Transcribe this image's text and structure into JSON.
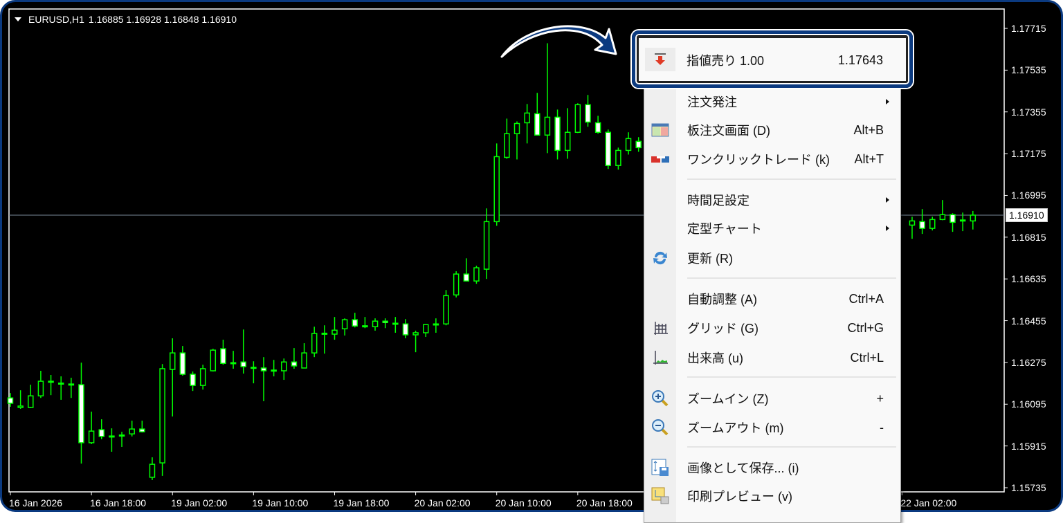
{
  "chart_header": {
    "symbol_tf": "EURUSD,H1",
    "ohlc": "1.16885 1.16928 1.16848 1.16910"
  },
  "colors": {
    "background": "#000000",
    "candle": "#00ff00",
    "bear_fill": "#ffffff",
    "bull_fill": "#000000",
    "bid_line": "#778899",
    "highlight_border": "#0b3a80"
  },
  "chart_data": {
    "type": "candlestick",
    "symbol": "EURUSD",
    "timeframe": "H1",
    "ylim": [
      1.15735,
      1.17715
    ],
    "grid": false,
    "y_ticks": [
      "1.17715",
      "1.17535",
      "1.17355",
      "1.17175",
      "1.16995",
      "1.16815",
      "1.16635",
      "1.16455",
      "1.16275",
      "1.16095",
      "1.15915",
      "1.15735"
    ],
    "current_price": "1.16910",
    "x_ticks": [
      {
        "bar": 0,
        "label": "16 Jan 2026"
      },
      {
        "bar": 8,
        "label": "16 Jan 18:00"
      },
      {
        "bar": 16,
        "label": "19 Jan 02:00"
      },
      {
        "bar": 24,
        "label": "19 Jan 10:00"
      },
      {
        "bar": 32,
        "label": "19 Jan 18:00"
      },
      {
        "bar": 40,
        "label": "20 Jan 02:00"
      },
      {
        "bar": 48,
        "label": "20 Jan 10:00"
      },
      {
        "bar": 56,
        "label": "20 Jan 18:00"
      },
      {
        "bar": 88,
        "label": "22 Jan 02:00"
      }
    ],
    "candles_ohlc": [
      [
        1.16122,
        1.16143,
        1.16084,
        1.16099
      ],
      [
        1.16081,
        1.16155,
        1.16075,
        1.16087
      ],
      [
        1.16081,
        1.16179,
        1.16078,
        1.16131
      ],
      [
        1.16131,
        1.16239,
        1.16122,
        1.16194
      ],
      [
        1.16194,
        1.16221,
        1.16134,
        1.16191
      ],
      [
        1.16185,
        1.16215,
        1.16114,
        1.16186
      ],
      [
        1.16182,
        1.16209,
        1.16122,
        1.16179
      ],
      [
        1.16179,
        1.16274,
        1.15839,
        1.15929
      ],
      [
        1.15929,
        1.16063,
        1.15923,
        1.15979
      ],
      [
        1.15985,
        1.1603,
        1.15944,
        1.15956
      ],
      [
        1.15956,
        1.15991,
        1.1589,
        1.15958
      ],
      [
        1.15961,
        1.15976,
        1.15911,
        1.15962
      ],
      [
        1.15967,
        1.16024,
        1.15956,
        1.15988
      ],
      [
        1.15988,
        1.16024,
        1.15973,
        1.15976
      ],
      [
        1.1578,
        1.15866,
        1.15768,
        1.15836
      ],
      [
        1.15842,
        1.16268,
        1.15786,
        1.16248
      ],
      [
        1.16245,
        1.16379,
        1.16042,
        1.16316
      ],
      [
        1.16316,
        1.16346,
        1.16218,
        1.16224
      ],
      [
        1.16224,
        1.16236,
        1.16152,
        1.16176
      ],
      [
        1.16176,
        1.16265,
        1.16158,
        1.16248
      ],
      [
        1.16239,
        1.16334,
        1.16236,
        1.16328
      ],
      [
        1.16334,
        1.16373,
        1.16265,
        1.16271
      ],
      [
        1.16274,
        1.16325,
        1.16248,
        1.16273
      ],
      [
        1.16277,
        1.16417,
        1.16227,
        1.16257
      ],
      [
        1.16254,
        1.1628,
        1.16185,
        1.16254
      ],
      [
        1.16251,
        1.16298,
        1.16108,
        1.16239
      ],
      [
        1.16242,
        1.16286,
        1.16215,
        1.16242
      ],
      [
        1.16239,
        1.16292,
        1.162,
        1.16277
      ],
      [
        1.16277,
        1.16337,
        1.16248,
        1.1626
      ],
      [
        1.16251,
        1.16358,
        1.16251,
        1.16316
      ],
      [
        1.16316,
        1.16429,
        1.16298,
        1.164
      ],
      [
        1.164,
        1.16435,
        1.16313,
        1.16401
      ],
      [
        1.16397,
        1.16471,
        1.16373,
        1.16414
      ],
      [
        1.1642,
        1.16465,
        1.16391,
        1.16459
      ],
      [
        1.16459,
        1.16489,
        1.16426,
        1.16432
      ],
      [
        1.16432,
        1.16471,
        1.16423,
        1.16433
      ],
      [
        1.16429,
        1.16465,
        1.16412,
        1.16453
      ],
      [
        1.16453,
        1.16465,
        1.16423,
        1.16447
      ],
      [
        1.16444,
        1.16471,
        1.16403,
        1.16444
      ],
      [
        1.16441,
        1.16462,
        1.16379,
        1.16394
      ],
      [
        1.16394,
        1.16412,
        1.16319,
        1.16403
      ],
      [
        1.16403,
        1.1644,
        1.16385,
        1.16438
      ],
      [
        1.1644,
        1.16465,
        1.16403,
        1.16441
      ],
      [
        1.16441,
        1.16587,
        1.16435,
        1.16563
      ],
      [
        1.16566,
        1.16668,
        1.16555,
        1.16656
      ],
      [
        1.16656,
        1.16724,
        1.16624,
        1.16626
      ],
      [
        1.16626,
        1.16692,
        1.16614,
        1.16683
      ],
      [
        1.16677,
        1.16939,
        1.16635,
        1.16882
      ],
      [
        1.16882,
        1.17219,
        1.16864,
        1.17162
      ],
      [
        1.17159,
        1.17326,
        1.17153,
        1.17261
      ],
      [
        1.17261,
        1.17314,
        1.1715,
        1.17305
      ],
      [
        1.17308,
        1.17389,
        1.17219,
        1.1735
      ],
      [
        1.17347,
        1.17437,
        1.17255,
        1.17255
      ],
      [
        1.17255,
        1.17651,
        1.17177,
        1.17332
      ],
      [
        1.17332,
        1.17365,
        1.1715,
        1.17189
      ],
      [
        1.17189,
        1.17371,
        1.17153,
        1.17267
      ],
      [
        1.17267,
        1.17392,
        1.17264,
        1.17386
      ],
      [
        1.17386,
        1.17428,
        1.17291,
        1.17311
      ],
      [
        1.17308,
        1.17338,
        1.17261,
        1.17267
      ],
      [
        1.17267,
        1.17279,
        1.17109,
        1.17124
      ],
      [
        1.17124,
        1.17201,
        1.17106,
        1.17189
      ],
      [
        1.17189,
        1.17267,
        1.17171,
        1.1724
      ],
      [
        1.17228,
        1.17246,
        1.17183,
        1.17201
      ],
      null,
      null,
      null,
      null,
      null,
      null,
      null,
      null,
      null,
      null,
      null,
      null,
      null,
      null,
      null,
      null,
      null,
      null,
      null,
      null,
      null,
      null,
      null,
      null,
      null,
      null,
      [
        1.16867,
        1.16903,
        1.16808,
        1.16885
      ],
      [
        1.16882,
        1.16936,
        1.16829,
        1.16853
      ],
      [
        1.16853,
        1.16903,
        1.16844,
        1.16891
      ],
      [
        1.16891,
        1.16975,
        1.16888,
        1.16912
      ],
      [
        1.16912,
        1.16918,
        1.16838,
        1.16879
      ],
      [
        1.16888,
        1.16921,
        1.16841,
        1.16889
      ],
      [
        1.16885,
        1.16928,
        1.16848,
        1.1691
      ]
    ]
  },
  "context_menu": {
    "highlighted": {
      "label": "指値売り 1.00",
      "price": "1.17643",
      "icon": "sell-limit-arrow-icon"
    },
    "items": [
      {
        "label": "注文発注",
        "submenu": true
      },
      {
        "label": "板注文画面 (D)",
        "shortcut": "Alt+B",
        "icon": "depth-of-market-icon"
      },
      {
        "label": "ワンクリックトレード (k)",
        "shortcut": "Alt+T",
        "icon": "one-click-trading-icon"
      },
      {
        "label": "時間足設定",
        "submenu": true
      },
      {
        "label": "定型チャート",
        "submenu": true
      },
      {
        "label": "更新 (R)",
        "icon": "refresh-icon"
      },
      {
        "label": "自動調整 (A)",
        "shortcut": "Ctrl+A"
      },
      {
        "label": "グリッド (G)",
        "shortcut": "Ctrl+G",
        "icon": "grid-icon"
      },
      {
        "label": "出来高 (u)",
        "shortcut": "Ctrl+L",
        "icon": "volumes-icon"
      },
      {
        "label": "ズームイン (Z)",
        "shortcut": "+",
        "icon": "zoom-in-icon"
      },
      {
        "label": "ズームアウト (m)",
        "shortcut": "-",
        "icon": "zoom-out-icon"
      },
      {
        "label": "画像として保存... (i)",
        "icon": "save-image-icon"
      },
      {
        "label": "印刷プレビュー (v)",
        "icon": "print-preview-icon"
      }
    ]
  }
}
